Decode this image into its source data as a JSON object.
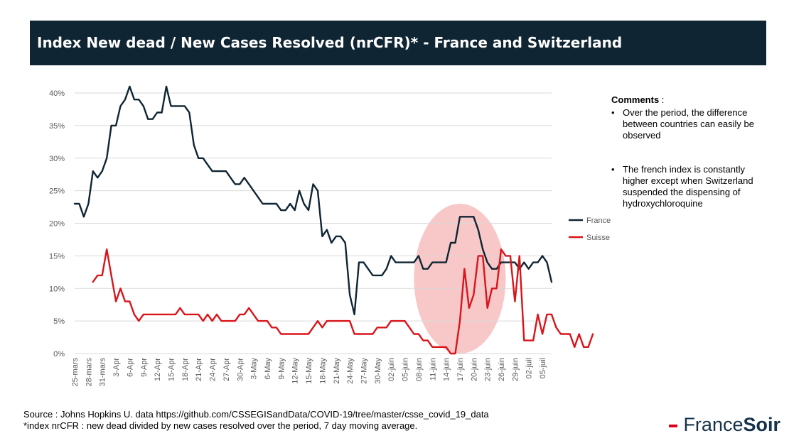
{
  "header": {
    "title": "Index New dead / New Cases Resolved (nrCFR)* - France and Switzerland"
  },
  "comments": {
    "heading": "Comments",
    "heading_suffix": " :",
    "bullet": "•",
    "items": [
      "Over the period, the difference between countries can easily be observed",
      "The french index is constantly higher except when Switzerland suspended the dispensing of hydroxychloroquine"
    ]
  },
  "footer": {
    "source": "Source : Johns Hopkins U. data https://github.com/CSSEGISandData/COVID-19/tree/master/csse_covid_19_data",
    "note": "*index nrCFR : new dead divided by new cases resolved over the period, 7 day moving average."
  },
  "logo": {
    "part1": "France",
    "part2": "Soir"
  },
  "colors": {
    "france": "#0f2533",
    "suisse": "#d9141a",
    "highlight": "#f5b5b5",
    "title_bg": "#0f2533",
    "logo_dash": "#e2001a"
  },
  "chart_data": {
    "type": "line",
    "title": "",
    "xlabel": "",
    "ylabel": "",
    "ylim": [
      0,
      40
    ],
    "yticks": [
      "0%",
      "5%",
      "10%",
      "15%",
      "20%",
      "25%",
      "30%",
      "35%",
      "40%"
    ],
    "xticks": [
      "25-mars",
      "28-mars",
      "31-mars",
      "3-Apr",
      "6-Apr",
      "9-Apr",
      "12-Apr",
      "15-Apr",
      "18-Apr",
      "21-Apr",
      "24-Apr",
      "27-Apr",
      "30-Apr",
      "3-May",
      "6-May",
      "9-May",
      "12-May",
      "15-May",
      "18-May",
      "21-May",
      "24-May",
      "27-May",
      "30-May",
      "02-juin",
      "05-juin",
      "08-juin",
      "11-juin",
      "14-juin",
      "17-juin",
      "20-juin",
      "23-juin",
      "26-juin",
      "29-juin",
      "02-juil",
      "05-juil"
    ],
    "grid": true,
    "legend": "right",
    "highlight": {
      "shape": "ellipse",
      "x_from": "07-juin",
      "x_to": "27-juin"
    },
    "series": [
      {
        "name": "France",
        "start_index": 0,
        "values": [
          23,
          23,
          21,
          23,
          28,
          27,
          28,
          30,
          35,
          35,
          38,
          39,
          41,
          39,
          39,
          38,
          36,
          36,
          37,
          37,
          41,
          38,
          38,
          38,
          38,
          37,
          32,
          30,
          30,
          29,
          28,
          28,
          28,
          28,
          27,
          26,
          26,
          27,
          26,
          25,
          24,
          23,
          23,
          23,
          23,
          22,
          22,
          23,
          22,
          25,
          23,
          22,
          26,
          25,
          18,
          19,
          17,
          18,
          18,
          17,
          9,
          6,
          14,
          14,
          13,
          12,
          12,
          12,
          13,
          15,
          14,
          14,
          14,
          14,
          14,
          15,
          13,
          13,
          14,
          14,
          14,
          14,
          17,
          17,
          21,
          21,
          21,
          21,
          19,
          16,
          14,
          13,
          13,
          14,
          14,
          14,
          14,
          13,
          14,
          13,
          14,
          14,
          15,
          14,
          11
        ]
      },
      {
        "name": "Suisse",
        "start_index": 4,
        "values": [
          11,
          12,
          12,
          16,
          12,
          8,
          10,
          8,
          8,
          6,
          5,
          6,
          6,
          6,
          6,
          6,
          6,
          6,
          6,
          7,
          6,
          6,
          6,
          6,
          5,
          6,
          5,
          6,
          5,
          5,
          5,
          5,
          6,
          6,
          7,
          6,
          5,
          5,
          5,
          4,
          4,
          3,
          3,
          3,
          3,
          3,
          3,
          3,
          4,
          5,
          4,
          5,
          5,
          5,
          5,
          5,
          5,
          3,
          3,
          3,
          3,
          3,
          4,
          4,
          4,
          5,
          5,
          5,
          5,
          4,
          3,
          3,
          2,
          2,
          1,
          1,
          1,
          1,
          0,
          0,
          5,
          13,
          7,
          9,
          15,
          15,
          7,
          10,
          10,
          16,
          15,
          15,
          8,
          15,
          2,
          2,
          2,
          6,
          3,
          6,
          6,
          4,
          3,
          3,
          3,
          1,
          3,
          1,
          1,
          3
        ]
      }
    ]
  }
}
